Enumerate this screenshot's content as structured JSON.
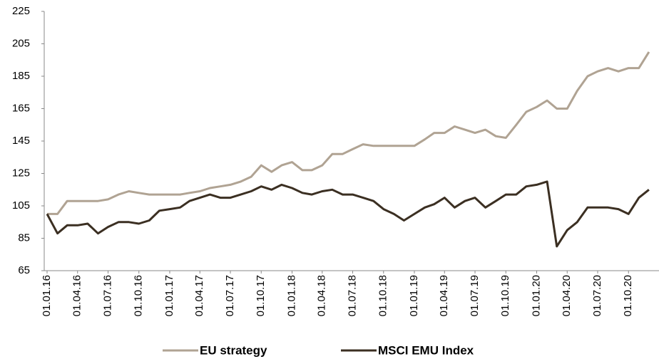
{
  "chart_data": {
    "type": "line",
    "x": [
      "01.01.16",
      "01.02.16",
      "01.03.16",
      "01.04.16",
      "01.05.16",
      "01.06.16",
      "01.07.16",
      "01.08.16",
      "01.09.16",
      "01.10.16",
      "01.11.16",
      "01.12.16",
      "01.01.17",
      "01.02.17",
      "01.03.17",
      "01.04.17",
      "01.05.17",
      "01.06.17",
      "01.07.17",
      "01.08.17",
      "01.09.17",
      "01.10.17",
      "01.11.17",
      "01.12.17",
      "01.01.18",
      "01.02.18",
      "01.03.18",
      "01.04.18",
      "01.05.18",
      "01.06.18",
      "01.07.18",
      "01.08.18",
      "01.09.18",
      "01.10.18",
      "01.11.18",
      "01.12.18",
      "01.01.19",
      "01.02.19",
      "01.03.19",
      "01.04.19",
      "01.05.19",
      "01.06.19",
      "01.07.19",
      "01.08.19",
      "01.09.19",
      "01.10.19",
      "01.11.19",
      "01.12.19",
      "01.01.20",
      "01.02.20",
      "01.03.20",
      "01.04.20",
      "01.05.20",
      "01.06.20",
      "01.07.20",
      "01.08.20",
      "01.09.20",
      "01.10.20",
      "01.11.20",
      "01.12.20"
    ],
    "series": [
      {
        "name": "EU strategy",
        "color": "#b0a393",
        "values": [
          100,
          100,
          108,
          108,
          108,
          108,
          109,
          112,
          114,
          113,
          112,
          112,
          112,
          112,
          113,
          114,
          116,
          117,
          118,
          120,
          123,
          130,
          126,
          130,
          132,
          127,
          127,
          130,
          137,
          137,
          140,
          143,
          142,
          142,
          142,
          142,
          142,
          146,
          150,
          150,
          154,
          152,
          150,
          152,
          148,
          147,
          155,
          163,
          166,
          170,
          165,
          165,
          176,
          185,
          188,
          190,
          188,
          190,
          190,
          200
        ]
      },
      {
        "name": "MSCI EMU Index",
        "color": "#3b2f22",
        "values": [
          100,
          88,
          93,
          93,
          94,
          88,
          92,
          95,
          95,
          94,
          96,
          102,
          103,
          104,
          108,
          110,
          112,
          110,
          110,
          112,
          114,
          117,
          115,
          118,
          116,
          113,
          112,
          114,
          115,
          112,
          112,
          110,
          108,
          103,
          100,
          96,
          100,
          104,
          106,
          110,
          104,
          108,
          110,
          104,
          108,
          112,
          112,
          117,
          118,
          120,
          80,
          90,
          95,
          104,
          104,
          104,
          103,
          100,
          110,
          115
        ]
      }
    ],
    "xlim": [
      "01.01.16",
      "31.12.20"
    ],
    "xticks": [
      "01.01.16",
      "01.04.16",
      "01.07.16",
      "01.10.16",
      "01.01.17",
      "01.04.17",
      "01.07.17",
      "01.10.17",
      "01.01.18",
      "01.04.18",
      "01.07.18",
      "01.10.18",
      "01.01.19",
      "01.04.19",
      "01.07.19",
      "01.10.19",
      "01.01.20",
      "01.04.20",
      "01.07.20",
      "01.10.20"
    ],
    "ylim": [
      65,
      225
    ],
    "yticks": [
      65,
      85,
      105,
      125,
      145,
      165,
      185,
      205,
      225
    ],
    "grid": false,
    "legend": "bottom"
  }
}
